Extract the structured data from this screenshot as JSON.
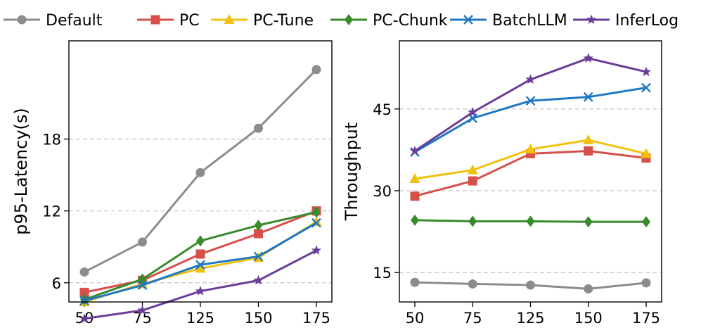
{
  "legend": [
    {
      "label": "Default",
      "color": "#8c8c8c",
      "marker": "circle"
    },
    {
      "label": "PC",
      "color": "#d6504a",
      "marker": "square"
    },
    {
      "label": "PC-Tune",
      "color": "#f2c10d",
      "marker": "triangle"
    },
    {
      "label": "PC-Chunk",
      "color": "#3a8a2e",
      "marker": "diamond"
    },
    {
      "label": "BatchLLM",
      "color": "#1f77c4",
      "marker": "x"
    },
    {
      "label": "InferLog",
      "color": "#6a3d9a",
      "marker": "star"
    }
  ],
  "chart_data": [
    {
      "type": "line",
      "ylabel": "p95-Latency(s)",
      "xlabel": "",
      "categories": [
        "50",
        "75",
        "125",
        "150",
        "175"
      ],
      "yticks": [
        6,
        12,
        18
      ],
      "ylim": [
        4.4,
        26.2
      ],
      "grid": "horizontal dashed",
      "series": [
        {
          "name": "Default",
          "values": [
            6.9,
            9.4,
            15.2,
            18.9,
            23.8
          ]
        },
        {
          "name": "PC",
          "values": [
            5.2,
            6.2,
            8.4,
            10.1,
            12.0
          ]
        },
        {
          "name": "PC-Tune",
          "values": [
            4.4,
            5.9,
            7.2,
            8.1,
            11.1
          ]
        },
        {
          "name": "PC-Chunk",
          "values": [
            4.6,
            6.3,
            9.5,
            10.8,
            11.9
          ]
        },
        {
          "name": "BatchLLM",
          "values": [
            4.5,
            5.8,
            7.5,
            8.2,
            11.0
          ]
        },
        {
          "name": "InferLog",
          "values": [
            3.0,
            3.7,
            5.3,
            6.2,
            8.7
          ]
        }
      ]
    },
    {
      "type": "line",
      "ylabel": "Throughput",
      "xlabel": "",
      "categories": [
        "50",
        "75",
        "125",
        "150",
        "175"
      ],
      "yticks": [
        15,
        30,
        45
      ],
      "ylim": [
        9.6,
        57.5
      ],
      "grid": "horizontal dashed",
      "series": [
        {
          "name": "Default",
          "values": [
            13.2,
            12.9,
            12.7,
            12.0,
            13.1
          ]
        },
        {
          "name": "PC",
          "values": [
            29.0,
            31.8,
            36.8,
            37.3,
            36.0
          ]
        },
        {
          "name": "PC-Tune",
          "values": [
            32.2,
            33.8,
            37.6,
            39.3,
            36.8
          ]
        },
        {
          "name": "PC-Chunk",
          "values": [
            24.6,
            24.4,
            24.4,
            24.3,
            24.3
          ]
        },
        {
          "name": "BatchLLM",
          "values": [
            37.1,
            43.3,
            46.5,
            47.2,
            48.9
          ]
        },
        {
          "name": "InferLog",
          "values": [
            37.3,
            44.4,
            50.4,
            54.3,
            51.8
          ]
        }
      ]
    }
  ]
}
